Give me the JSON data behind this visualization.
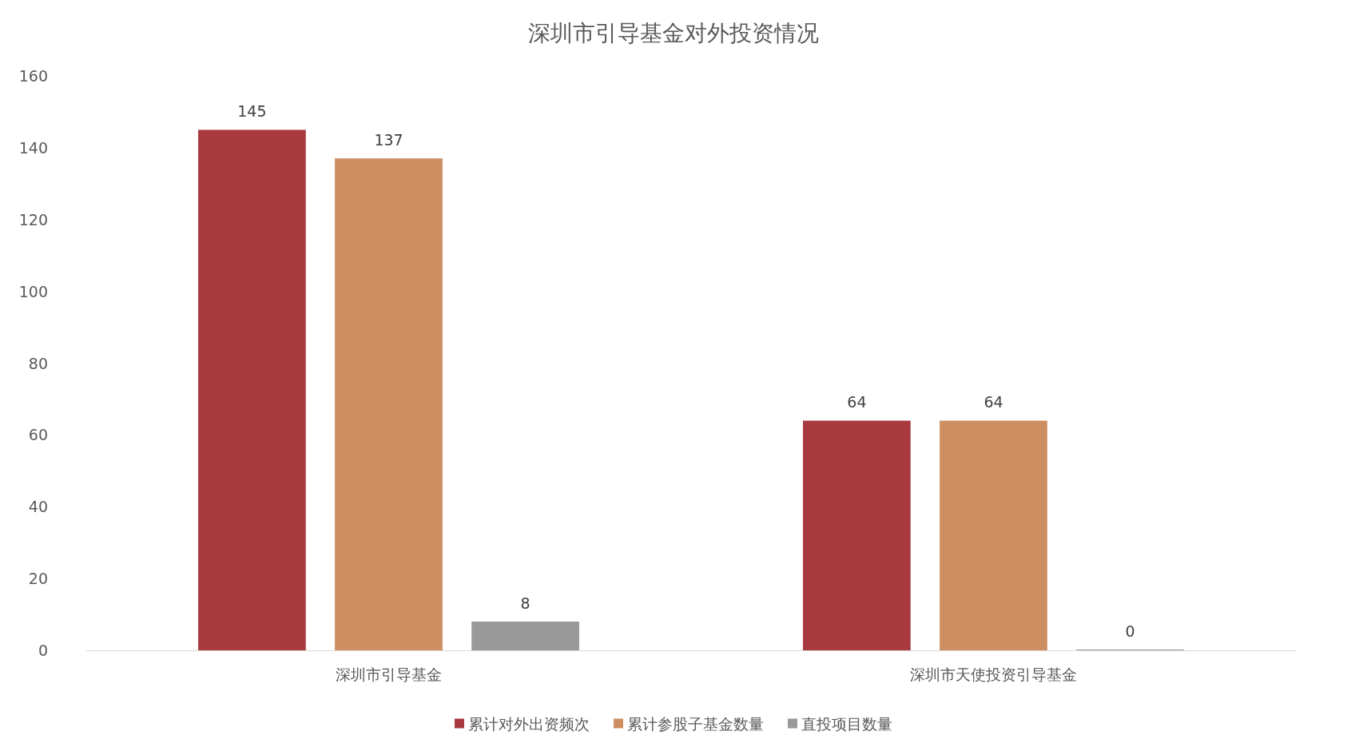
{
  "chart_data": {
    "type": "bar",
    "title": "深圳市引导基金对外投资情况",
    "categories": [
      "深圳市引导基金",
      "深圳市天使投资引导基金"
    ],
    "series": [
      {
        "name": "累计对外出资频次",
        "color": "#a83a3f",
        "values": [
          145,
          64
        ]
      },
      {
        "name": "累计参股子基金数量",
        "color": "#cd8e62",
        "values": [
          137,
          64
        ]
      },
      {
        "name": "直投项目数量",
        "color": "#999999",
        "values": [
          8,
          0
        ]
      }
    ],
    "ylim": [
      0,
      160
    ],
    "yticks": [
      0,
      20,
      40,
      60,
      80,
      100,
      120,
      140,
      160
    ],
    "data_labels": true,
    "legend": "bottom",
    "grid": false
  }
}
